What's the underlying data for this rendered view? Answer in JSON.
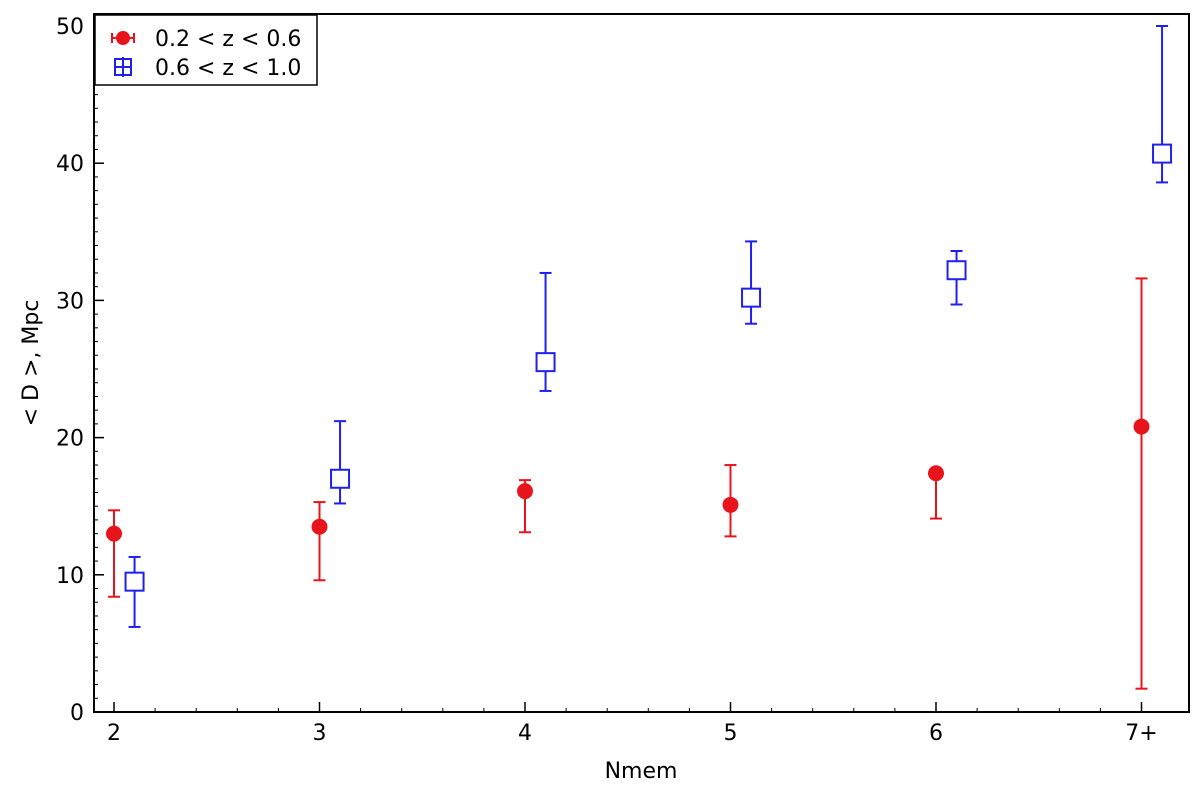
{
  "chart_data": {
    "type": "scatter",
    "xlabel": "Nmem",
    "ylabel": "< D >, Mpc",
    "categories": [
      "2",
      "3",
      "4",
      "5",
      "6",
      "7+"
    ],
    "xlim": [
      1.9,
      7.1
    ],
    "ylim": [
      0,
      50
    ],
    "yticks": [
      "0",
      "10",
      "20",
      "30",
      "40",
      "50"
    ],
    "legend_position": "top-left",
    "series": [
      {
        "name": "0.2 < z < 0.6",
        "color": "#e8141b",
        "marker": "filled-circle",
        "x": [
          2.0,
          3.0,
          4.0,
          5.0,
          6.0,
          7.0
        ],
        "y": [
          13.0,
          13.5,
          16.1,
          15.1,
          17.4,
          20.8
        ],
        "y_low": [
          8.4,
          9.6,
          13.1,
          12.8,
          14.1,
          1.7
        ],
        "y_high": [
          14.7,
          15.3,
          16.9,
          18.0,
          17.4,
          31.6
        ]
      },
      {
        "name": "0.6 < z < 1.0",
        "color": "#2020ee",
        "marker": "open-square",
        "x": [
          2.1,
          3.1,
          4.1,
          5.1,
          6.1,
          7.1
        ],
        "y": [
          9.5,
          17.0,
          25.5,
          30.2,
          32.2,
          40.7
        ],
        "y_low": [
          6.2,
          15.2,
          23.4,
          28.3,
          29.7,
          38.6
        ],
        "y_high": [
          11.3,
          21.2,
          32.0,
          34.3,
          33.6,
          50.0
        ]
      }
    ]
  }
}
